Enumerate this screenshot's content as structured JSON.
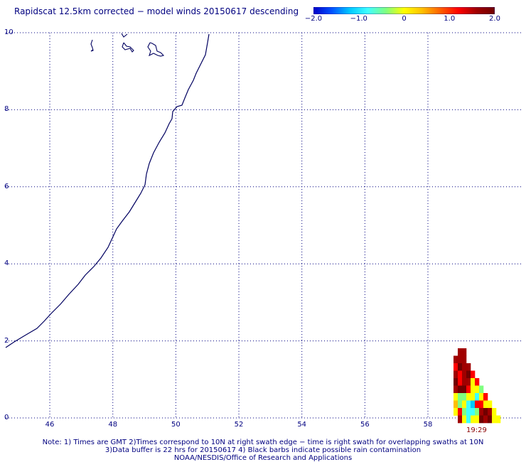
{
  "title": "Rapidscat 12.5km corrected − model winds 20150617 descending",
  "colorbar": {
    "ticks": [
      {
        "label": "−2.0",
        "value": -2.0
      },
      {
        "label": "−1.0",
        "value": -1.0
      },
      {
        "label": "0",
        "value": 0
      },
      {
        "label": "1.0",
        "value": 1.0
      },
      {
        "label": "2.0",
        "value": 2.0
      }
    ],
    "range": [
      -2.0,
      2.0
    ],
    "colors": [
      "#0000c8",
      "#0050ff",
      "#00c8ff",
      "#40ffff",
      "#80ff80",
      "#ffff00",
      "#ffc000",
      "#ff6000",
      "#ff0000",
      "#a00000",
      "#700000"
    ]
  },
  "map": {
    "lon_range": [
      44.6,
      61.0
    ],
    "lat_range": [
      0,
      10
    ],
    "x_ticks": [
      "46",
      "48",
      "50",
      "52",
      "54",
      "56",
      "58"
    ],
    "y_ticks": [
      "0",
      "2",
      "4",
      "6",
      "8",
      "10"
    ],
    "coast_color": "#000060",
    "grid_color": "#000080"
  },
  "swath_time": "19:29",
  "notes": [
    "Note: 1) Times are GMT 2)Times correspond to 10N at right swath edge − time is right swath for overlapping swaths at 10N",
    "3)Data buffer is 22 hrs for 20150617 4) Black barbs indicate possible rain contamination",
    "NOAA/NESDIS/Office of Research and Applications"
  ]
}
